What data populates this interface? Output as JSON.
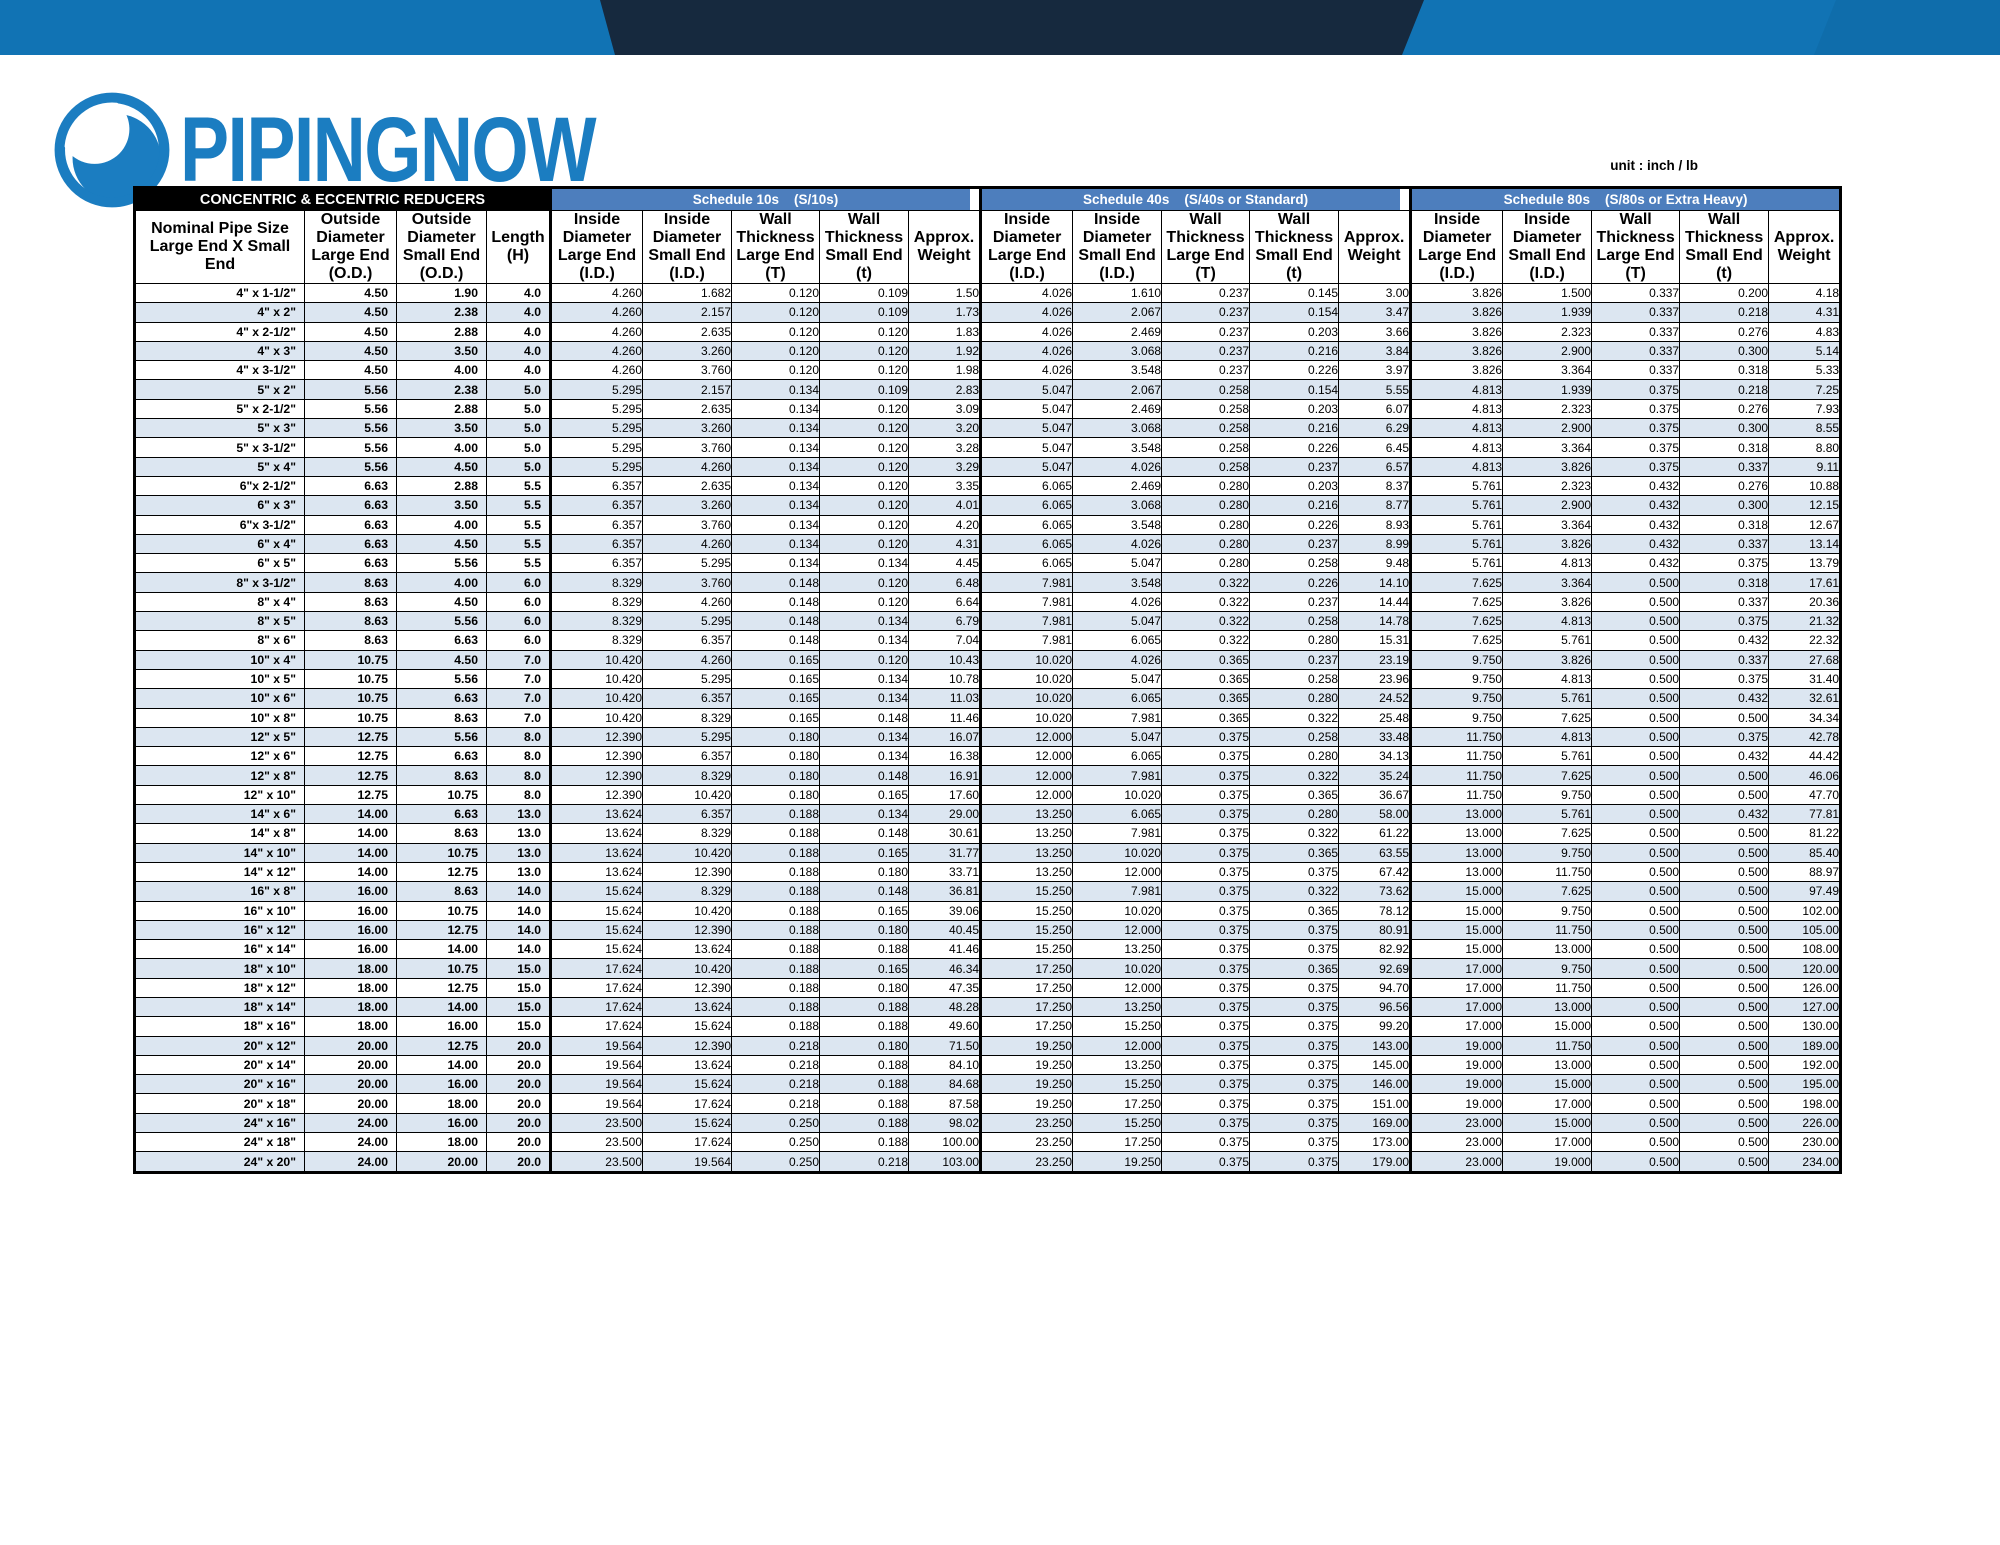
{
  "brand": {
    "logo_text": "PIPINGNOW"
  },
  "unit_label": "unit : inch / lb",
  "colors": {
    "banner_blue": "#1173b4",
    "banner_navy": "#16293e",
    "banner_right_blue": "#0f6dab",
    "logo_blue": "#1b7dc1",
    "group_header_blue": "#4d7ebd",
    "header_cell_blue": "#dce6f1",
    "row_alt_blue": "#dce6f1",
    "title_bar_black": "#000000"
  },
  "table": {
    "title": "CONCENTRIC & ECCENTRIC REDUCERS",
    "groups": [
      {
        "label": "Schedule 10s",
        "sublabel": "(S/10s)"
      },
      {
        "label": "Schedule 40s",
        "sublabel": "(S/40s or Standard)"
      },
      {
        "label": "Schedule 80s",
        "sublabel": "(S/80s or Extra Heavy)"
      }
    ],
    "base_headers": [
      [
        "Nominal Pipe",
        "Size",
        "Large End X",
        "Small End"
      ],
      [
        "Outside",
        "Diameter",
        "Large End",
        "(O.D.)"
      ],
      [
        "Outside",
        "Diameter",
        "Small End",
        "(O.D.)"
      ],
      [
        "Length",
        "(H)"
      ]
    ],
    "group_subheaders": [
      [
        "Inside",
        "Diameter",
        "Large End",
        "(I.D.)"
      ],
      [
        "Inside",
        "Diameter",
        "Small End",
        "(I.D.)"
      ],
      [
        "Wall",
        "Thickness",
        "Large End",
        "(T)"
      ],
      [
        "Wall",
        "Thickness",
        "Small End",
        "(t)"
      ],
      [
        "Approx.",
        "Weight"
      ]
    ],
    "column_keys": [
      "nominal-size",
      "od-large-end",
      "od-small-end",
      "length",
      "s10-id-large",
      "s10-id-small",
      "s10-wall-large",
      "s10-wall-small",
      "s10-weight",
      "s40-id-large",
      "s40-id-small",
      "s40-wall-large",
      "s40-wall-small",
      "s40-weight",
      "s80-id-large",
      "s80-id-small",
      "s80-wall-large",
      "s80-wall-small",
      "s80-weight"
    ],
    "rows": [
      [
        "4\" x 1-1/2\"",
        "4.50",
        "1.90",
        "4.0",
        "4.260",
        "1.682",
        "0.120",
        "0.109",
        "1.50",
        "4.026",
        "1.610",
        "0.237",
        "0.145",
        "3.00",
        "3.826",
        "1.500",
        "0.337",
        "0.200",
        "4.18"
      ],
      [
        "4\" x 2\"",
        "4.50",
        "2.38",
        "4.0",
        "4.260",
        "2.157",
        "0.120",
        "0.109",
        "1.73",
        "4.026",
        "2.067",
        "0.237",
        "0.154",
        "3.47",
        "3.826",
        "1.939",
        "0.337",
        "0.218",
        "4.31"
      ],
      [
        "4\" x 2-1/2\"",
        "4.50",
        "2.88",
        "4.0",
        "4.260",
        "2.635",
        "0.120",
        "0.120",
        "1.83",
        "4.026",
        "2.469",
        "0.237",
        "0.203",
        "3.66",
        "3.826",
        "2.323",
        "0.337",
        "0.276",
        "4.83"
      ],
      [
        "4\" x 3\"",
        "4.50",
        "3.50",
        "4.0",
        "4.260",
        "3.260",
        "0.120",
        "0.120",
        "1.92",
        "4.026",
        "3.068",
        "0.237",
        "0.216",
        "3.84",
        "3.826",
        "2.900",
        "0.337",
        "0.300",
        "5.14"
      ],
      [
        "4\" x 3-1/2\"",
        "4.50",
        "4.00",
        "4.0",
        "4.260",
        "3.760",
        "0.120",
        "0.120",
        "1.98",
        "4.026",
        "3.548",
        "0.237",
        "0.226",
        "3.97",
        "3.826",
        "3.364",
        "0.337",
        "0.318",
        "5.33"
      ],
      [
        "5\" x 2\"",
        "5.56",
        "2.38",
        "5.0",
        "5.295",
        "2.157",
        "0.134",
        "0.109",
        "2.83",
        "5.047",
        "2.067",
        "0.258",
        "0.154",
        "5.55",
        "4.813",
        "1.939",
        "0.375",
        "0.218",
        "7.25"
      ],
      [
        "5\" x 2-1/2\"",
        "5.56",
        "2.88",
        "5.0",
        "5.295",
        "2.635",
        "0.134",
        "0.120",
        "3.09",
        "5.047",
        "2.469",
        "0.258",
        "0.203",
        "6.07",
        "4.813",
        "2.323",
        "0.375",
        "0.276",
        "7.93"
      ],
      [
        "5\" x 3\"",
        "5.56",
        "3.50",
        "5.0",
        "5.295",
        "3.260",
        "0.134",
        "0.120",
        "3.20",
        "5.047",
        "3.068",
        "0.258",
        "0.216",
        "6.29",
        "4.813",
        "2.900",
        "0.375",
        "0.300",
        "8.55"
      ],
      [
        "5\" x 3-1/2\"",
        "5.56",
        "4.00",
        "5.0",
        "5.295",
        "3.760",
        "0.134",
        "0.120",
        "3.28",
        "5.047",
        "3.548",
        "0.258",
        "0.226",
        "6.45",
        "4.813",
        "3.364",
        "0.375",
        "0.318",
        "8.80"
      ],
      [
        "5\" x 4\"",
        "5.56",
        "4.50",
        "5.0",
        "5.295",
        "4.260",
        "0.134",
        "0.120",
        "3.29",
        "5.047",
        "4.026",
        "0.258",
        "0.237",
        "6.57",
        "4.813",
        "3.826",
        "0.375",
        "0.337",
        "9.11"
      ],
      [
        "6\"x 2-1/2\"",
        "6.63",
        "2.88",
        "5.5",
        "6.357",
        "2.635",
        "0.134",
        "0.120",
        "3.35",
        "6.065",
        "2.469",
        "0.280",
        "0.203",
        "8.37",
        "5.761",
        "2.323",
        "0.432",
        "0.276",
        "10.88"
      ],
      [
        "6\" x 3\"",
        "6.63",
        "3.50",
        "5.5",
        "6.357",
        "3.260",
        "0.134",
        "0.120",
        "4.01",
        "6.065",
        "3.068",
        "0.280",
        "0.216",
        "8.77",
        "5.761",
        "2.900",
        "0.432",
        "0.300",
        "12.15"
      ],
      [
        "6\"x 3-1/2\"",
        "6.63",
        "4.00",
        "5.5",
        "6.357",
        "3.760",
        "0.134",
        "0.120",
        "4.20",
        "6.065",
        "3.548",
        "0.280",
        "0.226",
        "8.93",
        "5.761",
        "3.364",
        "0.432",
        "0.318",
        "12.67"
      ],
      [
        "6\" x 4\"",
        "6.63",
        "4.50",
        "5.5",
        "6.357",
        "4.260",
        "0.134",
        "0.120",
        "4.31",
        "6.065",
        "4.026",
        "0.280",
        "0.237",
        "8.99",
        "5.761",
        "3.826",
        "0.432",
        "0.337",
        "13.14"
      ],
      [
        "6\" x 5\"",
        "6.63",
        "5.56",
        "5.5",
        "6.357",
        "5.295",
        "0.134",
        "0.134",
        "4.45",
        "6.065",
        "5.047",
        "0.280",
        "0.258",
        "9.48",
        "5.761",
        "4.813",
        "0.432",
        "0.375",
        "13.79"
      ],
      [
        "8\" x 3-1/2\"",
        "8.63",
        "4.00",
        "6.0",
        "8.329",
        "3.760",
        "0.148",
        "0.120",
        "6.48",
        "7.981",
        "3.548",
        "0.322",
        "0.226",
        "14.10",
        "7.625",
        "3.364",
        "0.500",
        "0.318",
        "17.61"
      ],
      [
        "8\" x 4\"",
        "8.63",
        "4.50",
        "6.0",
        "8.329",
        "4.260",
        "0.148",
        "0.120",
        "6.64",
        "7.981",
        "4.026",
        "0.322",
        "0.237",
        "14.44",
        "7.625",
        "3.826",
        "0.500",
        "0.337",
        "20.36"
      ],
      [
        "8\" x 5\"",
        "8.63",
        "5.56",
        "6.0",
        "8.329",
        "5.295",
        "0.148",
        "0.134",
        "6.79",
        "7.981",
        "5.047",
        "0.322",
        "0.258",
        "14.78",
        "7.625",
        "4.813",
        "0.500",
        "0.375",
        "21.32"
      ],
      [
        "8\" x 6\"",
        "8.63",
        "6.63",
        "6.0",
        "8.329",
        "6.357",
        "0.148",
        "0.134",
        "7.04",
        "7.981",
        "6.065",
        "0.322",
        "0.280",
        "15.31",
        "7.625",
        "5.761",
        "0.500",
        "0.432",
        "22.32"
      ],
      [
        "10\" x 4\"",
        "10.75",
        "4.50",
        "7.0",
        "10.420",
        "4.260",
        "0.165",
        "0.120",
        "10.43",
        "10.020",
        "4.026",
        "0.365",
        "0.237",
        "23.19",
        "9.750",
        "3.826",
        "0.500",
        "0.337",
        "27.68"
      ],
      [
        "10\" x 5\"",
        "10.75",
        "5.56",
        "7.0",
        "10.420",
        "5.295",
        "0.165",
        "0.134",
        "10.78",
        "10.020",
        "5.047",
        "0.365",
        "0.258",
        "23.96",
        "9.750",
        "4.813",
        "0.500",
        "0.375",
        "31.40"
      ],
      [
        "10\" x 6\"",
        "10.75",
        "6.63",
        "7.0",
        "10.420",
        "6.357",
        "0.165",
        "0.134",
        "11.03",
        "10.020",
        "6.065",
        "0.365",
        "0.280",
        "24.52",
        "9.750",
        "5.761",
        "0.500",
        "0.432",
        "32.61"
      ],
      [
        "10\" x 8\"",
        "10.75",
        "8.63",
        "7.0",
        "10.420",
        "8.329",
        "0.165",
        "0.148",
        "11.46",
        "10.020",
        "7.981",
        "0.365",
        "0.322",
        "25.48",
        "9.750",
        "7.625",
        "0.500",
        "0.500",
        "34.34"
      ],
      [
        "12\" x 5\"",
        "12.75",
        "5.56",
        "8.0",
        "12.390",
        "5.295",
        "0.180",
        "0.134",
        "16.07",
        "12.000",
        "5.047",
        "0.375",
        "0.258",
        "33.48",
        "11.750",
        "4.813",
        "0.500",
        "0.375",
        "42.78"
      ],
      [
        "12\" x 6\"",
        "12.75",
        "6.63",
        "8.0",
        "12.390",
        "6.357",
        "0.180",
        "0.134",
        "16.38",
        "12.000",
        "6.065",
        "0.375",
        "0.280",
        "34.13",
        "11.750",
        "5.761",
        "0.500",
        "0.432",
        "44.42"
      ],
      [
        "12\" x 8\"",
        "12.75",
        "8.63",
        "8.0",
        "12.390",
        "8.329",
        "0.180",
        "0.148",
        "16.91",
        "12.000",
        "7.981",
        "0.375",
        "0.322",
        "35.24",
        "11.750",
        "7.625",
        "0.500",
        "0.500",
        "46.06"
      ],
      [
        "12\" x 10\"",
        "12.75",
        "10.75",
        "8.0",
        "12.390",
        "10.420",
        "0.180",
        "0.165",
        "17.60",
        "12.000",
        "10.020",
        "0.375",
        "0.365",
        "36.67",
        "11.750",
        "9.750",
        "0.500",
        "0.500",
        "47.70"
      ],
      [
        "14\" x 6\"",
        "14.00",
        "6.63",
        "13.0",
        "13.624",
        "6.357",
        "0.188",
        "0.134",
        "29.00",
        "13.250",
        "6.065",
        "0.375",
        "0.280",
        "58.00",
        "13.000",
        "5.761",
        "0.500",
        "0.432",
        "77.81"
      ],
      [
        "14\" x 8\"",
        "14.00",
        "8.63",
        "13.0",
        "13.624",
        "8.329",
        "0.188",
        "0.148",
        "30.61",
        "13.250",
        "7.981",
        "0.375",
        "0.322",
        "61.22",
        "13.000",
        "7.625",
        "0.500",
        "0.500",
        "81.22"
      ],
      [
        "14\" x 10\"",
        "14.00",
        "10.75",
        "13.0",
        "13.624",
        "10.420",
        "0.188",
        "0.165",
        "31.77",
        "13.250",
        "10.020",
        "0.375",
        "0.365",
        "63.55",
        "13.000",
        "9.750",
        "0.500",
        "0.500",
        "85.40"
      ],
      [
        "14\" x 12\"",
        "14.00",
        "12.75",
        "13.0",
        "13.624",
        "12.390",
        "0.188",
        "0.180",
        "33.71",
        "13.250",
        "12.000",
        "0.375",
        "0.375",
        "67.42",
        "13.000",
        "11.750",
        "0.500",
        "0.500",
        "88.97"
      ],
      [
        "16\" x 8\"",
        "16.00",
        "8.63",
        "14.0",
        "15.624",
        "8.329",
        "0.188",
        "0.148",
        "36.81",
        "15.250",
        "7.981",
        "0.375",
        "0.322",
        "73.62",
        "15.000",
        "7.625",
        "0.500",
        "0.500",
        "97.49"
      ],
      [
        "16\" x 10\"",
        "16.00",
        "10.75",
        "14.0",
        "15.624",
        "10.420",
        "0.188",
        "0.165",
        "39.06",
        "15.250",
        "10.020",
        "0.375",
        "0.365",
        "78.12",
        "15.000",
        "9.750",
        "0.500",
        "0.500",
        "102.00"
      ],
      [
        "16\" x 12\"",
        "16.00",
        "12.75",
        "14.0",
        "15.624",
        "12.390",
        "0.188",
        "0.180",
        "40.45",
        "15.250",
        "12.000",
        "0.375",
        "0.375",
        "80.91",
        "15.000",
        "11.750",
        "0.500",
        "0.500",
        "105.00"
      ],
      [
        "16\" x 14\"",
        "16.00",
        "14.00",
        "14.0",
        "15.624",
        "13.624",
        "0.188",
        "0.188",
        "41.46",
        "15.250",
        "13.250",
        "0.375",
        "0.375",
        "82.92",
        "15.000",
        "13.000",
        "0.500",
        "0.500",
        "108.00"
      ],
      [
        "18\" x 10\"",
        "18.00",
        "10.75",
        "15.0",
        "17.624",
        "10.420",
        "0.188",
        "0.165",
        "46.34",
        "17.250",
        "10.020",
        "0.375",
        "0.365",
        "92.69",
        "17.000",
        "9.750",
        "0.500",
        "0.500",
        "120.00"
      ],
      [
        "18\" x 12\"",
        "18.00",
        "12.75",
        "15.0",
        "17.624",
        "12.390",
        "0.188",
        "0.180",
        "47.35",
        "17.250",
        "12.000",
        "0.375",
        "0.375",
        "94.70",
        "17.000",
        "11.750",
        "0.500",
        "0.500",
        "126.00"
      ],
      [
        "18\" x 14\"",
        "18.00",
        "14.00",
        "15.0",
        "17.624",
        "13.624",
        "0.188",
        "0.188",
        "48.28",
        "17.250",
        "13.250",
        "0.375",
        "0.375",
        "96.56",
        "17.000",
        "13.000",
        "0.500",
        "0.500",
        "127.00"
      ],
      [
        "18\" x 16\"",
        "18.00",
        "16.00",
        "15.0",
        "17.624",
        "15.624",
        "0.188",
        "0.188",
        "49.60",
        "17.250",
        "15.250",
        "0.375",
        "0.375",
        "99.20",
        "17.000",
        "15.000",
        "0.500",
        "0.500",
        "130.00"
      ],
      [
        "20\" x 12\"",
        "20.00",
        "12.75",
        "20.0",
        "19.564",
        "12.390",
        "0.218",
        "0.180",
        "71.50",
        "19.250",
        "12.000",
        "0.375",
        "0.375",
        "143.00",
        "19.000",
        "11.750",
        "0.500",
        "0.500",
        "189.00"
      ],
      [
        "20\" x 14\"",
        "20.00",
        "14.00",
        "20.0",
        "19.564",
        "13.624",
        "0.218",
        "0.188",
        "84.10",
        "19.250",
        "13.250",
        "0.375",
        "0.375",
        "145.00",
        "19.000",
        "13.000",
        "0.500",
        "0.500",
        "192.00"
      ],
      [
        "20\" x 16\"",
        "20.00",
        "16.00",
        "20.0",
        "19.564",
        "15.624",
        "0.218",
        "0.188",
        "84.68",
        "19.250",
        "15.250",
        "0.375",
        "0.375",
        "146.00",
        "19.000",
        "15.000",
        "0.500",
        "0.500",
        "195.00"
      ],
      [
        "20\" x 18\"",
        "20.00",
        "18.00",
        "20.0",
        "19.564",
        "17.624",
        "0.218",
        "0.188",
        "87.58",
        "19.250",
        "17.250",
        "0.375",
        "0.375",
        "151.00",
        "19.000",
        "17.000",
        "0.500",
        "0.500",
        "198.00"
      ],
      [
        "24\" x 16\"",
        "24.00",
        "16.00",
        "20.0",
        "23.500",
        "15.624",
        "0.250",
        "0.188",
        "98.02",
        "23.250",
        "15.250",
        "0.375",
        "0.375",
        "169.00",
        "23.000",
        "15.000",
        "0.500",
        "0.500",
        "226.00"
      ],
      [
        "24\" x 18\"",
        "24.00",
        "18.00",
        "20.0",
        "23.500",
        "17.624",
        "0.250",
        "0.188",
        "100.00",
        "23.250",
        "17.250",
        "0.375",
        "0.375",
        "173.00",
        "23.000",
        "17.000",
        "0.500",
        "0.500",
        "230.00"
      ],
      [
        "24\" x 20\"",
        "24.00",
        "20.00",
        "20.0",
        "23.500",
        "19.564",
        "0.250",
        "0.218",
        "103.00",
        "23.250",
        "19.250",
        "0.375",
        "0.375",
        "179.00",
        "23.000",
        "19.000",
        "0.500",
        "0.500",
        "234.00"
      ]
    ]
  }
}
